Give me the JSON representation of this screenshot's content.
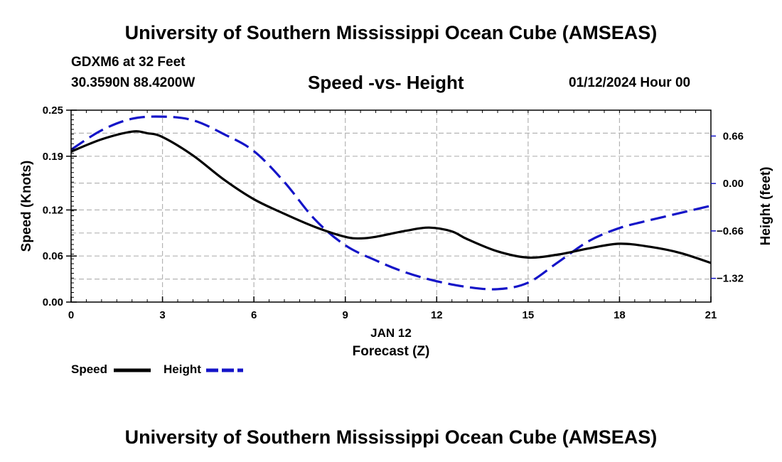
{
  "header": {
    "title": "University of Southern Mississippi Ocean Cube (AMSEAS)",
    "station": "GDXM6 at 32 Feet",
    "coords": "30.3590N  88.4200W",
    "subtitle": "Speed -vs- Height",
    "datetime": "01/12/2024 Hour 00"
  },
  "footer": {
    "title": "University of Southern Mississippi Ocean Cube (AMSEAS)"
  },
  "legend": {
    "speed_label": "Speed",
    "height_label": "Height"
  },
  "colors": {
    "speed": "#000000",
    "height": "#1414c8",
    "grid": "#b4b4b4"
  },
  "chart_data": {
    "type": "line",
    "title": "Speed -vs- Height",
    "xlabel": "Forecast (Z)",
    "xlabel_date": "JAN 12",
    "ylabel_left": "Speed (Knots)",
    "ylabel_right": "Height (feet)",
    "xlim": [
      0,
      21
    ],
    "ylim_left": [
      0,
      0.25
    ],
    "ylim_right": [
      -1.65,
      1.02
    ],
    "x_ticks": [
      0,
      3,
      6,
      9,
      12,
      15,
      18,
      21
    ],
    "x_tick_labels": [
      "0",
      "3",
      "6",
      "9",
      "12",
      "15",
      "18",
      "21"
    ],
    "y_left_ticks": [
      0.0,
      0.06,
      0.12,
      0.19,
      0.25
    ],
    "y_left_tick_labels": [
      "0.00",
      "0.06",
      "0.12",
      "0.19",
      "0.25"
    ],
    "y_right_ticks": [
      0.66,
      0.0,
      -0.66,
      -1.32
    ],
    "y_right_tick_labels": [
      "0.66",
      "0.00",
      "−0.66",
      "−1.32"
    ],
    "grid": true,
    "legend_position": "bottom-left",
    "series": [
      {
        "name": "Speed",
        "axis": "left",
        "style": "solid",
        "x": [
          0,
          1,
          2,
          2.5,
          3,
          4,
          5,
          6,
          7,
          8,
          9,
          9.5,
          10,
          11,
          11.75,
          12.5,
          13,
          14,
          15,
          16,
          17,
          18,
          19,
          20,
          21
        ],
        "values": [
          0.196,
          0.212,
          0.222,
          0.22,
          0.215,
          0.191,
          0.16,
          0.134,
          0.115,
          0.098,
          0.085,
          0.083,
          0.085,
          0.093,
          0.097,
          0.092,
          0.082,
          0.066,
          0.058,
          0.062,
          0.07,
          0.076,
          0.072,
          0.064,
          0.051
        ]
      },
      {
        "name": "Height",
        "axis": "right",
        "style": "dashed",
        "x": [
          0,
          1,
          2,
          3,
          4,
          5,
          6,
          7,
          8,
          9,
          10,
          11,
          12,
          13,
          14,
          15,
          16,
          17,
          18,
          19,
          20,
          21
        ],
        "values": [
          0.47,
          0.74,
          0.9,
          0.93,
          0.88,
          0.69,
          0.45,
          0.02,
          -0.5,
          -0.86,
          -1.07,
          -1.24,
          -1.36,
          -1.44,
          -1.47,
          -1.38,
          -1.09,
          -0.8,
          -0.62,
          -0.51,
          -0.41,
          -0.31
        ]
      }
    ]
  }
}
